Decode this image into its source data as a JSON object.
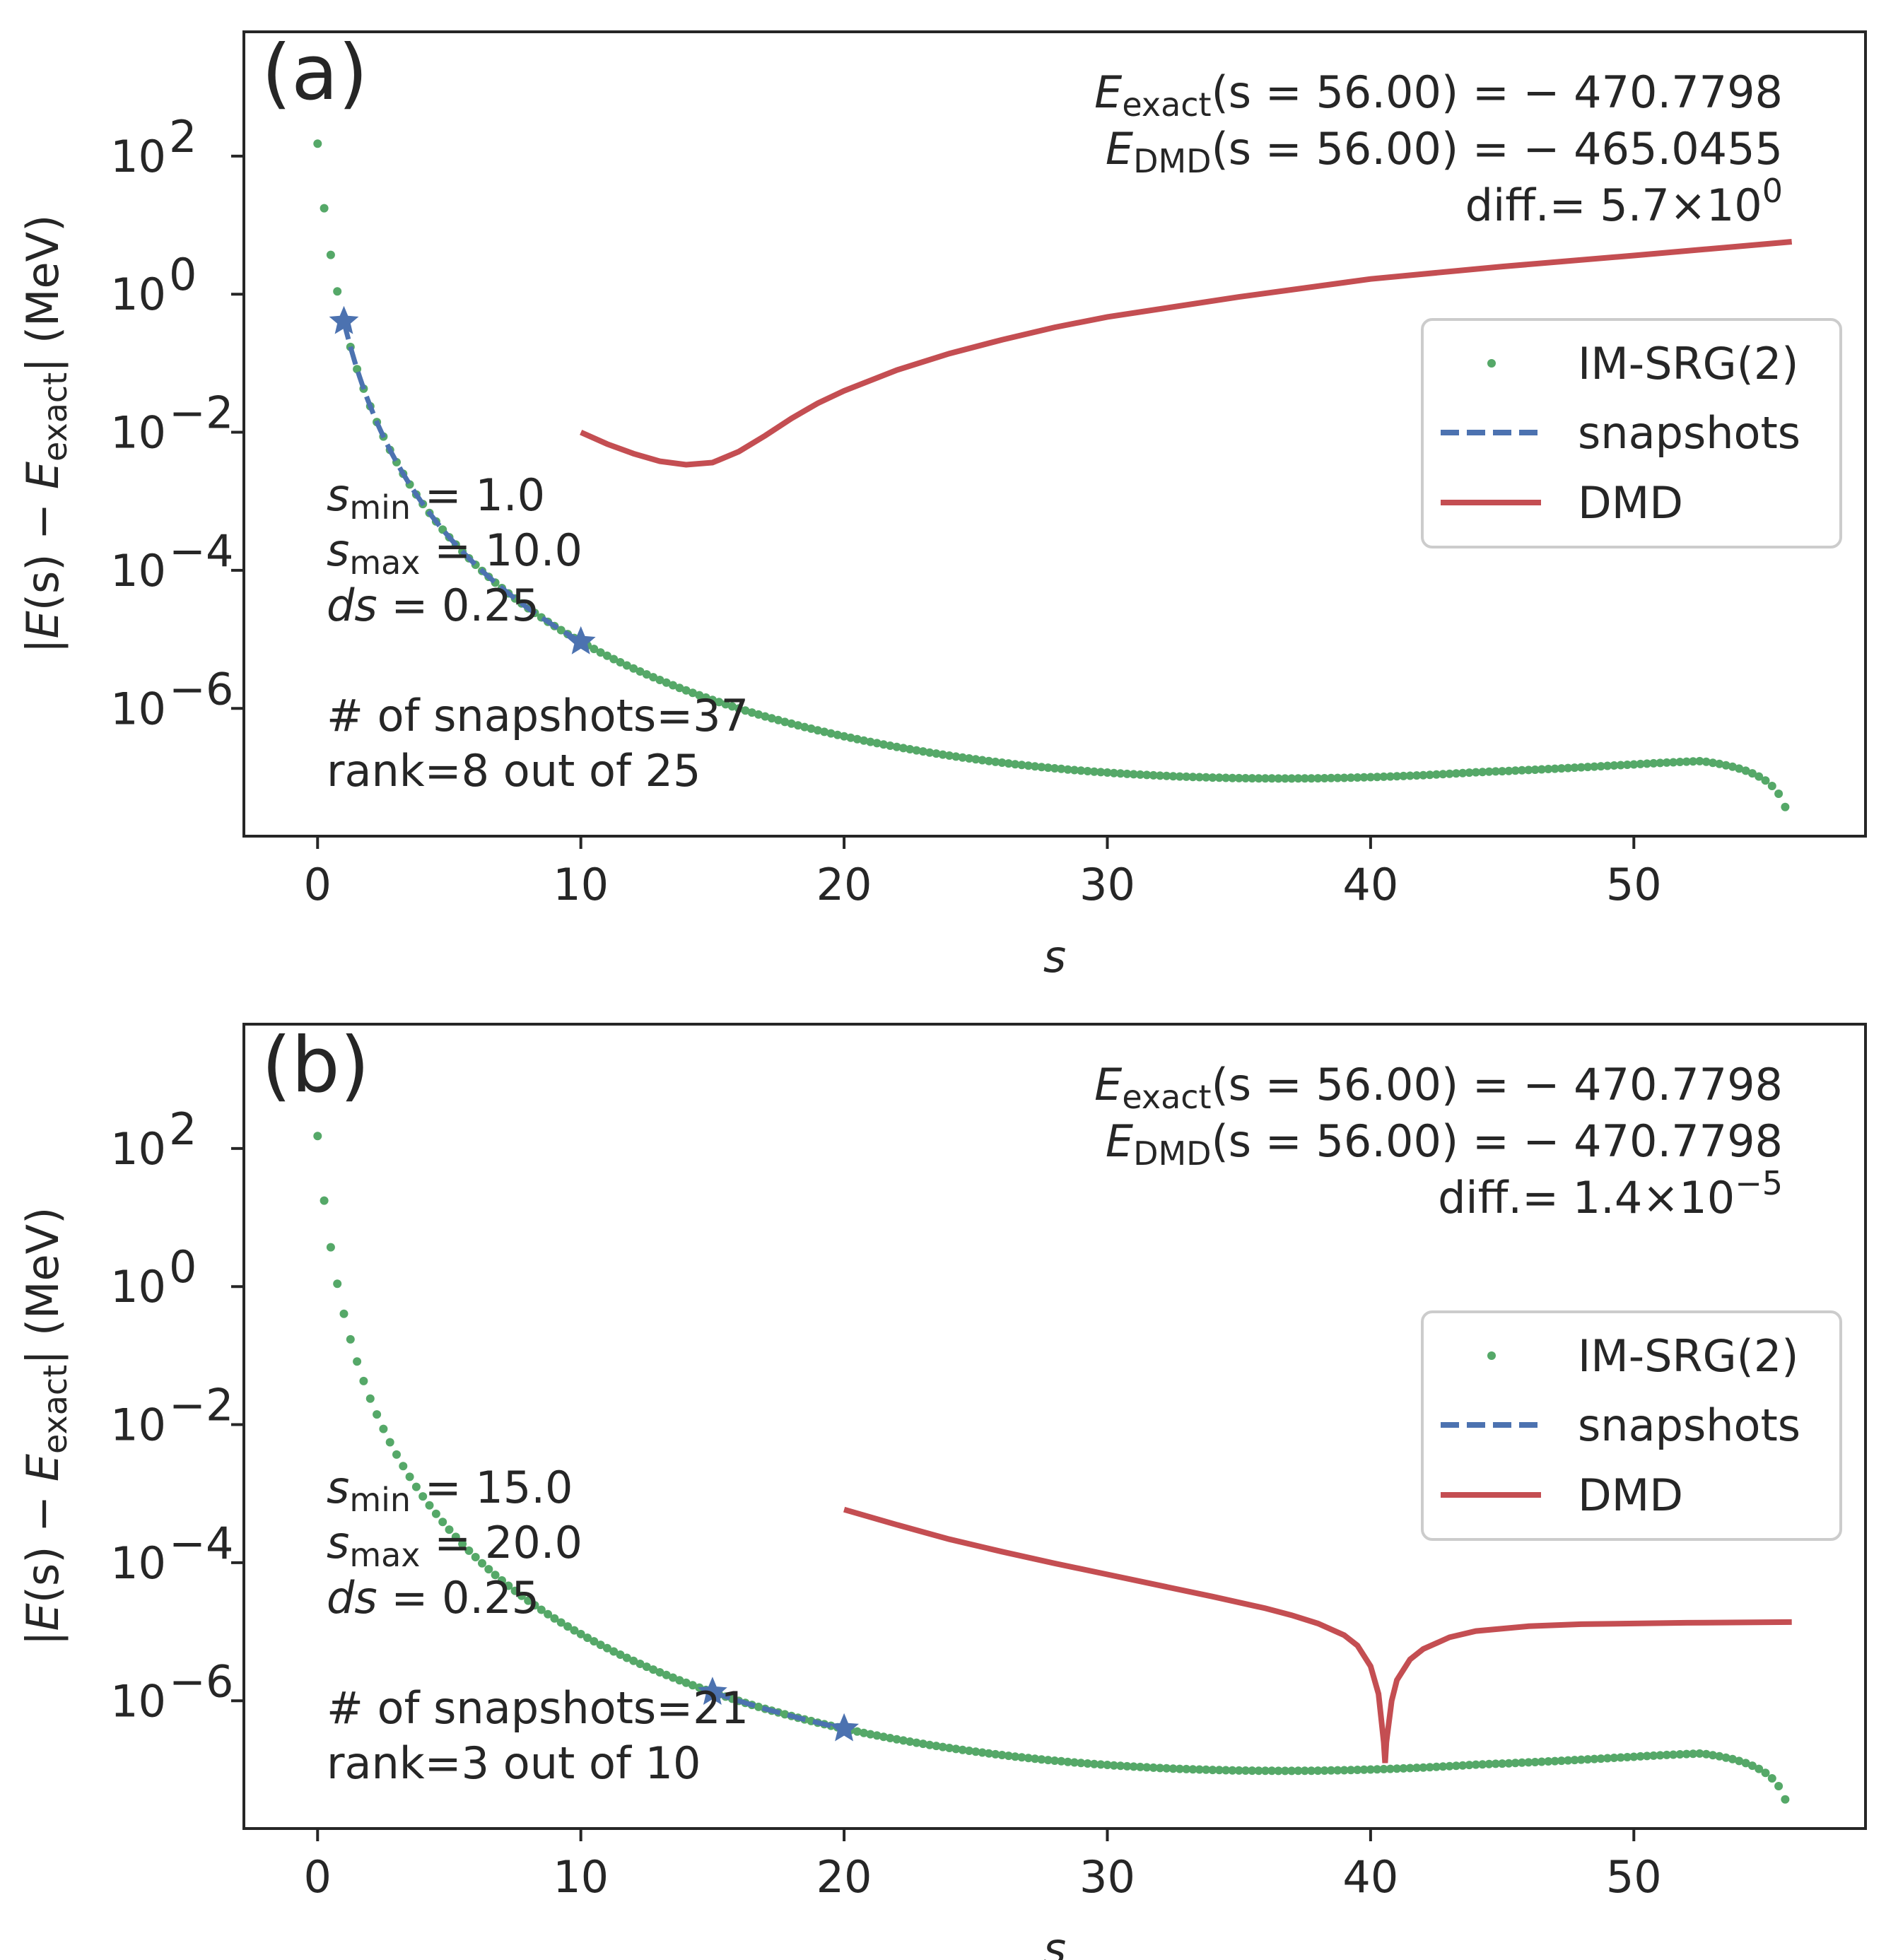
{
  "chart_data": [
    {
      "type": "scatter",
      "panel_label": "(a)",
      "xlabel": "s",
      "ylabel": "|E(s) − E_exact| (MeV)",
      "ylabel_parts": {
        "pre": "|",
        "E1": "E",
        "mid": "(s) − ",
        "E2": "E",
        "sub": "exact",
        "post": "| (MeV)"
      },
      "xlim": [
        -2.8,
        58.8
      ],
      "ylim_log10": [
        -7.85,
        3.8
      ],
      "yscale": "log",
      "xticks": [
        0,
        10,
        20,
        30,
        40,
        50
      ],
      "xtick_labels": [
        "0",
        "10",
        "20",
        "30",
        "40",
        "50"
      ],
      "yticks_exp": [
        2,
        0,
        -2,
        -4,
        -6
      ],
      "ytick_base": "10",
      "ytick_exponents": [
        "2",
        "0",
        "−2",
        "−4",
        "−6"
      ],
      "series": [
        {
          "name": "IM-SRG(2)",
          "kind": "points",
          "color": "#55a868",
          "x_start": 0.0,
          "x_end": 55.75,
          "dx": 0.25,
          "model": "log10|E-E_exact| ≈ 2.18 − 5.66·log10(1+s/0.54) + 0.09·(s/10)²  − tail drop near s→56"
        },
        {
          "name": "snapshots",
          "kind": "dashed",
          "color": "#4c72b0",
          "x_range": [
            1.0,
            10.0
          ]
        },
        {
          "name": "DMD",
          "kind": "line",
          "color": "#c44e52",
          "points": [
            [
              10.0,
              -2.0
            ],
            [
              11.0,
              -2.17
            ],
            [
              12.0,
              -2.31
            ],
            [
              13.0,
              -2.42
            ],
            [
              14.0,
              -2.47
            ],
            [
              15.0,
              -2.44
            ],
            [
              16.0,
              -2.28
            ],
            [
              17.0,
              -2.05
            ],
            [
              18.0,
              -1.8
            ],
            [
              19.0,
              -1.58
            ],
            [
              20.0,
              -1.4
            ],
            [
              22.0,
              -1.1
            ],
            [
              24.0,
              -0.86
            ],
            [
              26.0,
              -0.66
            ],
            [
              28.0,
              -0.48
            ],
            [
              30.0,
              -0.33
            ],
            [
              35.0,
              -0.04
            ],
            [
              40.0,
              0.22
            ],
            [
              45.0,
              0.4
            ],
            [
              50.0,
              0.56
            ],
            [
              56.0,
              0.76
            ]
          ]
        }
      ],
      "snapshot_markers_x": [
        1.0,
        10.0
      ],
      "legend": {
        "placement": "center-right",
        "entries": [
          "IM-SRG(2)",
          "snapshots",
          "DMD"
        ]
      },
      "annotations": {
        "e_exact": {
          "E": "E",
          "sub": "exact",
          "rest": "(s = 56.00) = − 470.7798"
        },
        "e_dmd": {
          "E": "E",
          "sub": "DMD",
          "rest": "(s = 56.00) = − 465.0455"
        },
        "diff": {
          "text": "diff.= 5.7×10",
          "sup": "0"
        },
        "params": {
          "smin": {
            "s": "s",
            "sub": "min",
            "rest": " = 1.0"
          },
          "smax": {
            "s": "s",
            "sub": "max",
            "rest": " = 10.0"
          },
          "ds": {
            "s": "ds",
            "rest": " = 0.25"
          },
          "snapshots": "# of snapshots=37",
          "rank": "rank=8 out of 25"
        }
      }
    },
    {
      "type": "scatter",
      "panel_label": "(b)",
      "xlabel": "s",
      "ylabel": "|E(s) − E_exact| (MeV)",
      "ylabel_parts": {
        "pre": "|",
        "E1": "E",
        "mid": "(s) − ",
        "E2": "E",
        "sub": "exact",
        "post": "| (MeV)"
      },
      "xlim": [
        -2.8,
        58.8
      ],
      "ylim_log10": [
        -7.85,
        3.8
      ],
      "yscale": "log",
      "xticks": [
        0,
        10,
        20,
        30,
        40,
        50
      ],
      "xtick_labels": [
        "0",
        "10",
        "20",
        "30",
        "40",
        "50"
      ],
      "yticks_exp": [
        2,
        0,
        -2,
        -4,
        -6
      ],
      "ytick_base": "10",
      "ytick_exponents": [
        "2",
        "0",
        "−2",
        "−4",
        "−6"
      ],
      "series": [
        {
          "name": "IM-SRG(2)",
          "kind": "points",
          "color": "#55a868",
          "x_start": 0.0,
          "x_end": 55.75,
          "dx": 0.25,
          "model": "same IM-SRG(2) curve as panel (a)"
        },
        {
          "name": "snapshots",
          "kind": "dashed",
          "color": "#4c72b0",
          "x_range": [
            15.0,
            20.0
          ]
        },
        {
          "name": "DMD",
          "kind": "line",
          "color": "#c44e52",
          "points": [
            [
              20.0,
              -3.23
            ],
            [
              22.0,
              -3.45
            ],
            [
              24.0,
              -3.66
            ],
            [
              26.0,
              -3.84
            ],
            [
              28.0,
              -4.01
            ],
            [
              30.0,
              -4.17
            ],
            [
              32.0,
              -4.33
            ],
            [
              34.0,
              -4.49
            ],
            [
              36.0,
              -4.66
            ],
            [
              37.0,
              -4.76
            ],
            [
              38.0,
              -4.88
            ],
            [
              39.0,
              -5.05
            ],
            [
              39.5,
              -5.2
            ],
            [
              40.0,
              -5.5
            ],
            [
              40.3,
              -5.9
            ],
            [
              40.5,
              -6.6
            ],
            [
              40.55,
              -6.9
            ],
            [
              40.6,
              -6.6
            ],
            [
              40.8,
              -6.0
            ],
            [
              41.0,
              -5.7
            ],
            [
              41.5,
              -5.4
            ],
            [
              42.0,
              -5.25
            ],
            [
              43.0,
              -5.08
            ],
            [
              44.0,
              -4.99
            ],
            [
              46.0,
              -4.92
            ],
            [
              48.0,
              -4.89
            ],
            [
              52.0,
              -4.87
            ],
            [
              56.0,
              -4.86
            ]
          ]
        }
      ],
      "snapshot_markers_x": [
        15.0,
        20.0
      ],
      "legend": {
        "placement": "center-right",
        "entries": [
          "IM-SRG(2)",
          "snapshots",
          "DMD"
        ]
      },
      "annotations": {
        "e_exact": {
          "E": "E",
          "sub": "exact",
          "rest": "(s = 56.00) = − 470.7798"
        },
        "e_dmd": {
          "E": "E",
          "sub": "DMD",
          "rest": "(s = 56.00) = − 470.7798"
        },
        "diff": {
          "text": "diff.= 1.4×10",
          "sup": "−5"
        },
        "params": {
          "smin": {
            "s": "s",
            "sub": "min",
            "rest": " = 15.0"
          },
          "smax": {
            "s": "s",
            "sub": "max",
            "rest": " = 20.0"
          },
          "ds": {
            "s": "ds",
            "rest": " = 0.25"
          },
          "snapshots": "# of snapshots=21",
          "rank": "rank=3 out of 10"
        }
      }
    }
  ]
}
